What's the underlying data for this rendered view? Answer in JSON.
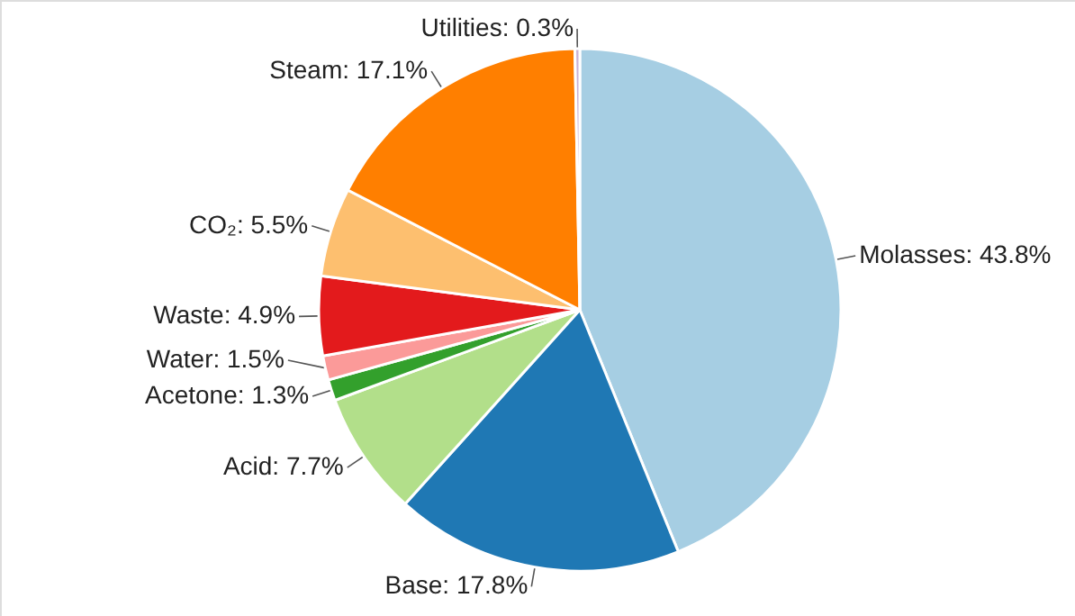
{
  "chart_data": {
    "type": "pie",
    "categories": [
      "Molasses",
      "Base",
      "Acid",
      "Acetone",
      "Water",
      "Waste",
      "CO₂",
      "Steam",
      "Utilities"
    ],
    "values": [
      43.8,
      17.8,
      7.7,
      1.3,
      1.5,
      4.9,
      5.5,
      17.1,
      0.3
    ],
    "colors": [
      "#a6cee3",
      "#1f78b4",
      "#b2df8a",
      "#33a02c",
      "#fb9a99",
      "#e31a1c",
      "#fdbf6f",
      "#ff7f00",
      "#cab2d6"
    ],
    "value_labels": [
      "43.8%",
      "17.8%",
      "7.7%",
      "1.3%",
      "1.5%",
      "4.9%",
      "5.5%",
      "17.1%",
      "0.3%"
    ]
  }
}
